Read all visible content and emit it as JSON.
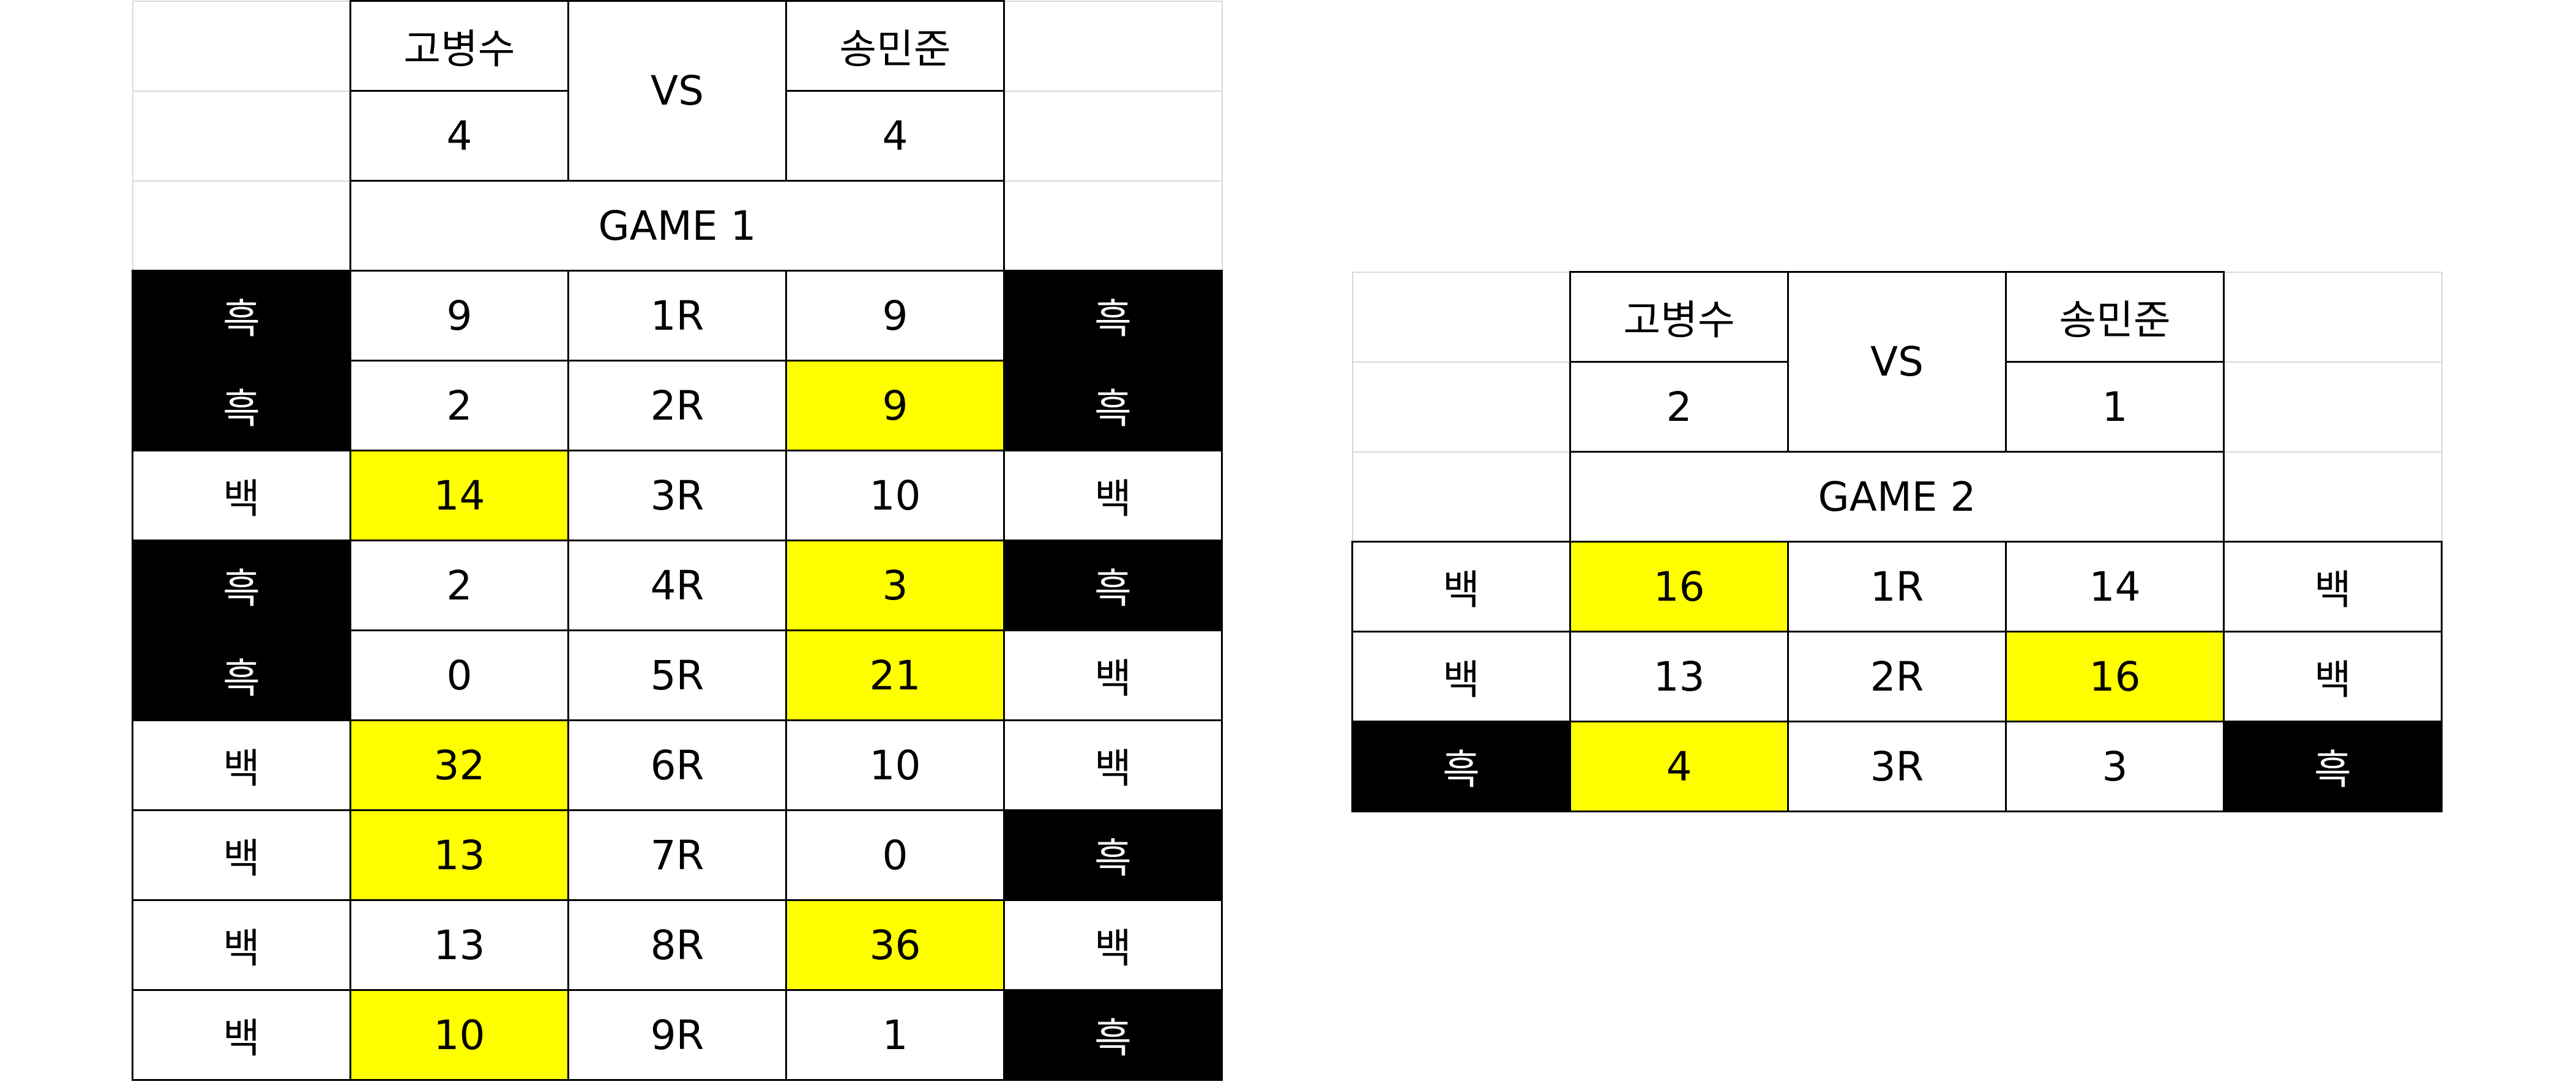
{
  "colors": {
    "black_stone": "#000000",
    "white_stone": "#ffffff",
    "round_winner": "#ffff00"
  },
  "games": [
    {
      "title": "GAME 1",
      "vs": "VS",
      "player_left": {
        "name": "고병수",
        "score": "4"
      },
      "player_right": {
        "name": "송민준",
        "score": "4"
      },
      "rounds": [
        {
          "round": "1R",
          "left_color": "흑",
          "left_score": "9",
          "right_score": "9",
          "right_color": "흑",
          "highlight": "none"
        },
        {
          "round": "2R",
          "left_color": "흑",
          "left_score": "2",
          "right_score": "9",
          "right_color": "흑",
          "highlight": "right"
        },
        {
          "round": "3R",
          "left_color": "백",
          "left_score": "14",
          "right_score": "10",
          "right_color": "백",
          "highlight": "left"
        },
        {
          "round": "4R",
          "left_color": "흑",
          "left_score": "2",
          "right_score": "3",
          "right_color": "흑",
          "highlight": "right"
        },
        {
          "round": "5R",
          "left_color": "흑",
          "left_score": "0",
          "right_score": "21",
          "right_color": "백",
          "highlight": "right"
        },
        {
          "round": "6R",
          "left_color": "백",
          "left_score": "32",
          "right_score": "10",
          "right_color": "백",
          "highlight": "left"
        },
        {
          "round": "7R",
          "left_color": "백",
          "left_score": "13",
          "right_score": "0",
          "right_color": "흑",
          "highlight": "left"
        },
        {
          "round": "8R",
          "left_color": "백",
          "left_score": "13",
          "right_score": "36",
          "right_color": "백",
          "highlight": "right"
        },
        {
          "round": "9R",
          "left_color": "백",
          "left_score": "10",
          "right_score": "1",
          "right_color": "흑",
          "highlight": "left"
        }
      ]
    },
    {
      "title": "GAME 2",
      "vs": "VS",
      "player_left": {
        "name": "고병수",
        "score": "2"
      },
      "player_right": {
        "name": "송민준",
        "score": "1"
      },
      "rounds": [
        {
          "round": "1R",
          "left_color": "백",
          "left_score": "16",
          "right_score": "14",
          "right_color": "백",
          "highlight": "left"
        },
        {
          "round": "2R",
          "left_color": "백",
          "left_score": "13",
          "right_score": "16",
          "right_color": "백",
          "highlight": "right"
        },
        {
          "round": "3R",
          "left_color": "흑",
          "left_score": "4",
          "right_score": "3",
          "right_color": "흑",
          "highlight": "left"
        }
      ]
    }
  ]
}
